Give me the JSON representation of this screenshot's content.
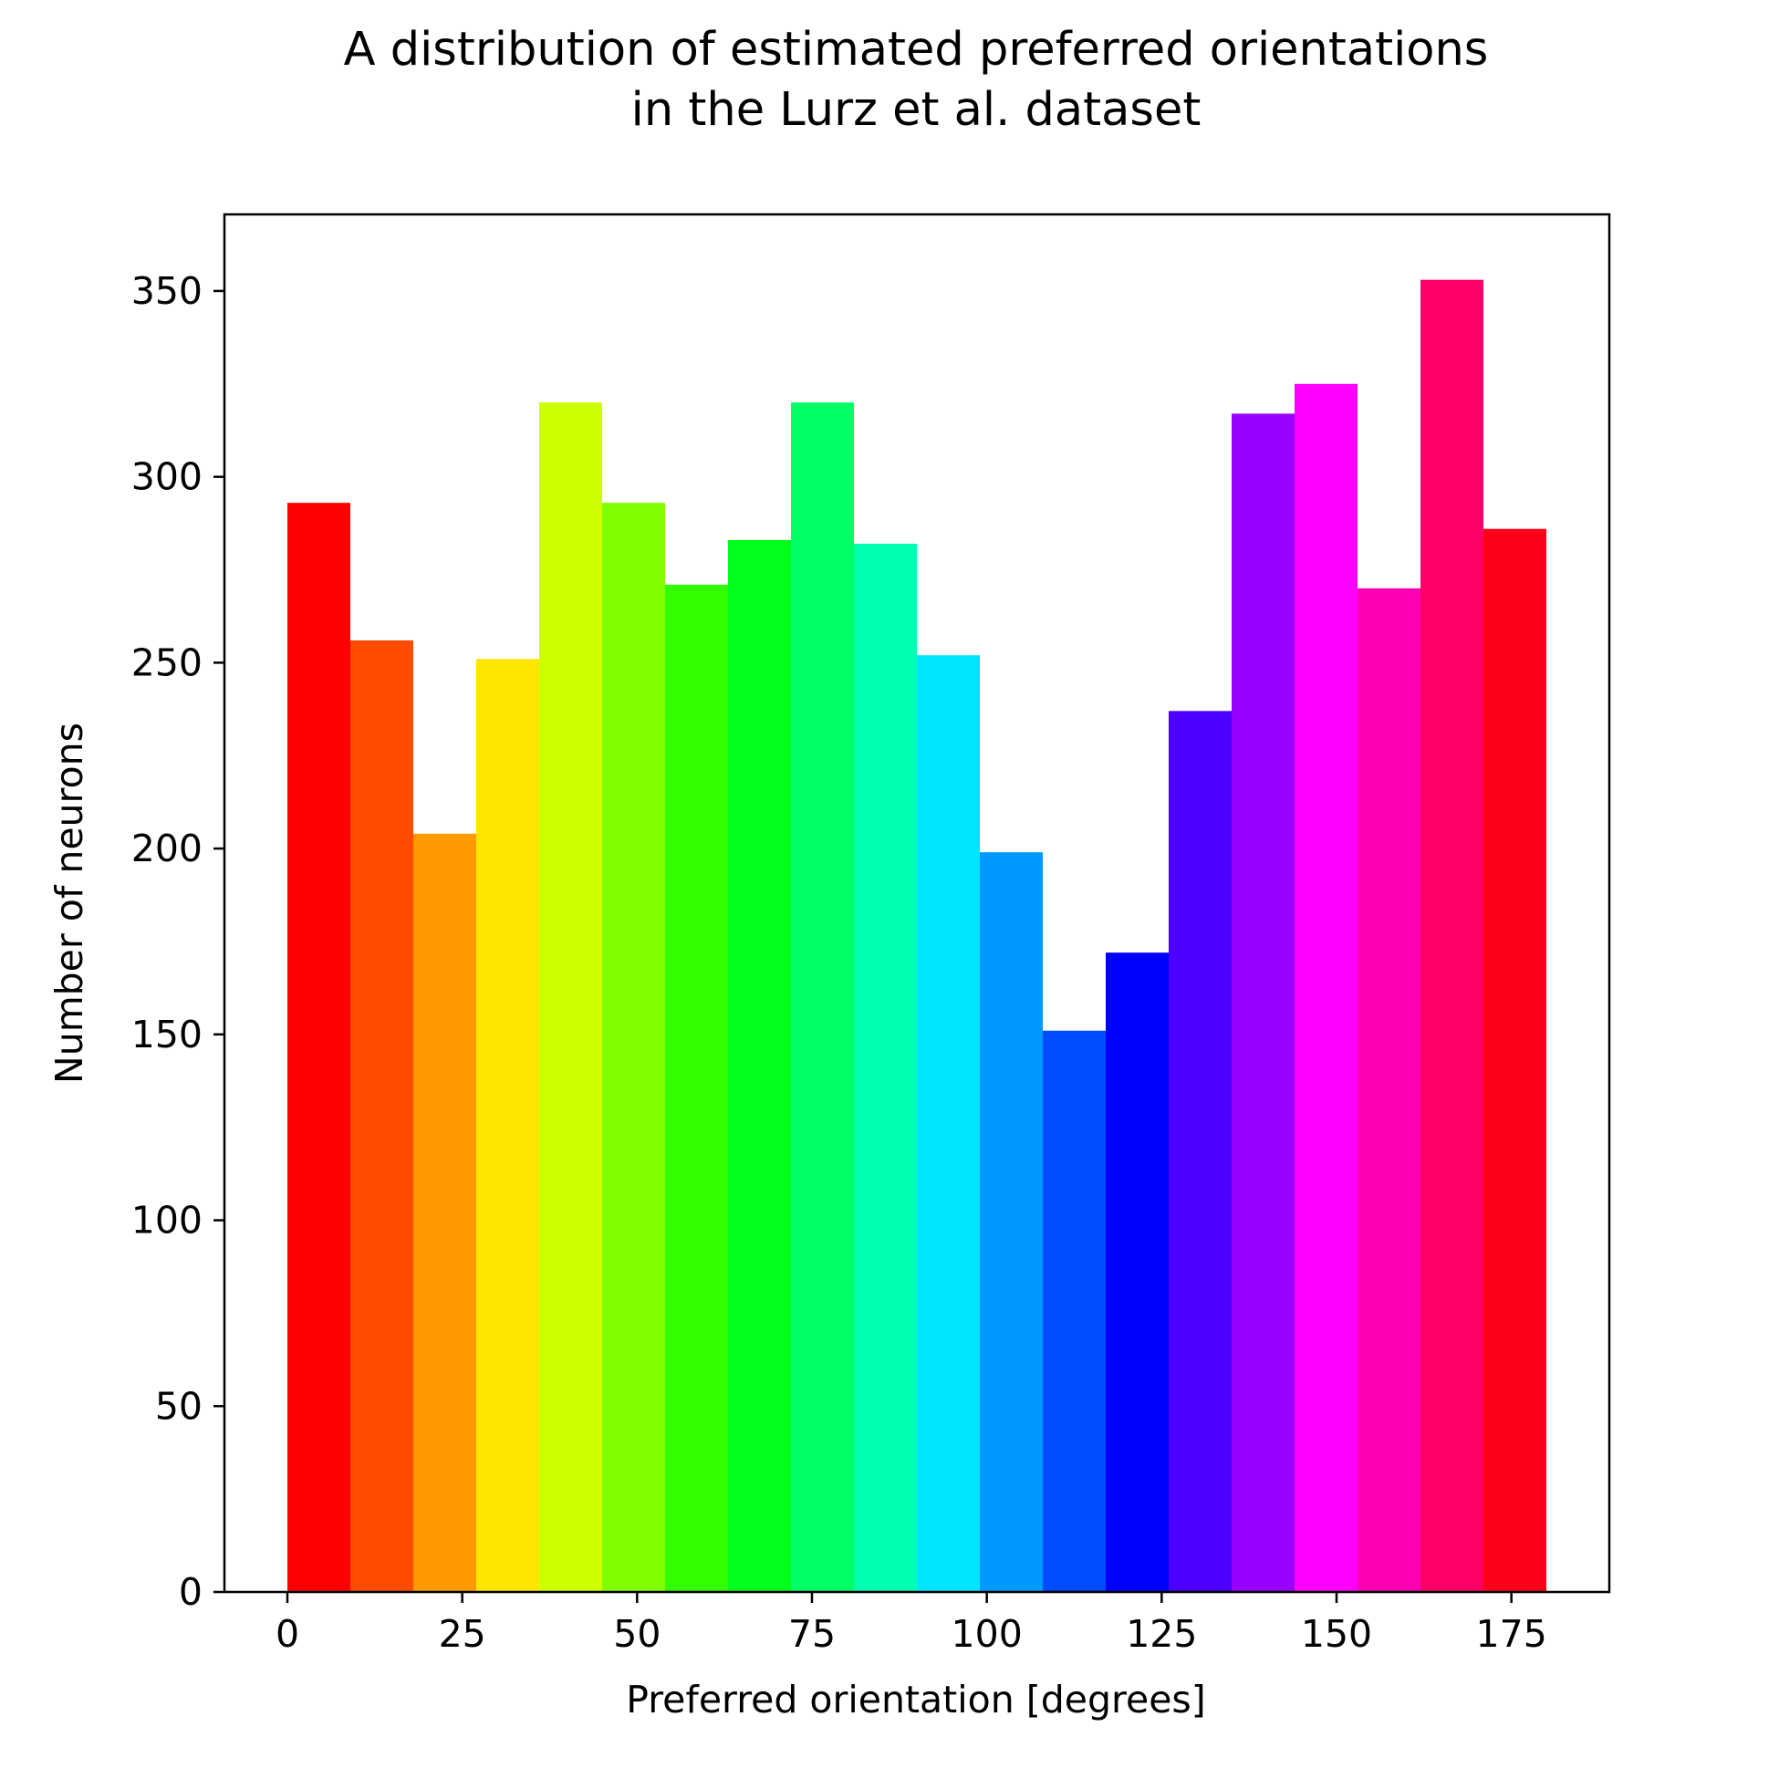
{
  "chart_data": {
    "type": "bar",
    "title_lines": [
      "A distribution of estimated preferred orientations",
      "in the Lurz et al. dataset"
    ],
    "xlabel": "Preferred orientation [degrees]",
    "ylabel": "Number of neurons",
    "xlim": [
      -9,
      189
    ],
    "ylim": [
      0,
      370.6
    ],
    "xticks": [
      0,
      25,
      50,
      75,
      100,
      125,
      150,
      175
    ],
    "yticks": [
      0,
      50,
      100,
      150,
      200,
      250,
      300,
      350
    ],
    "bin_width": 9,
    "bins": [
      {
        "start": 0,
        "value": 293,
        "color": "#ff0000"
      },
      {
        "start": 9,
        "value": 256,
        "color": "#ff4c00"
      },
      {
        "start": 18,
        "value": 204,
        "color": "#ff9900"
      },
      {
        "start": 27,
        "value": 251,
        "color": "#ffe500"
      },
      {
        "start": 36,
        "value": 320,
        "color": "#ccff00"
      },
      {
        "start": 45,
        "value": 293,
        "color": "#80ff00"
      },
      {
        "start": 54,
        "value": 271,
        "color": "#33ff00"
      },
      {
        "start": 63,
        "value": 283,
        "color": "#00ff1a"
      },
      {
        "start": 72,
        "value": 320,
        "color": "#00ff66"
      },
      {
        "start": 81,
        "value": 282,
        "color": "#00ffb3"
      },
      {
        "start": 90,
        "value": 252,
        "color": "#00e5ff"
      },
      {
        "start": 99,
        "value": 199,
        "color": "#0099ff"
      },
      {
        "start": 108,
        "value": 151,
        "color": "#004cff"
      },
      {
        "start": 117,
        "value": 172,
        "color": "#0000ff"
      },
      {
        "start": 126,
        "value": 237,
        "color": "#4c00ff"
      },
      {
        "start": 135,
        "value": 317,
        "color": "#9900ff"
      },
      {
        "start": 144,
        "value": 325,
        "color": "#ff00ff"
      },
      {
        "start": 153,
        "value": 270,
        "color": "#ff00b3"
      },
      {
        "start": 162,
        "value": 353,
        "color": "#ff0066"
      },
      {
        "start": 171,
        "value": 286,
        "color": "#ff001a"
      }
    ],
    "grid": false,
    "legend": "none"
  }
}
